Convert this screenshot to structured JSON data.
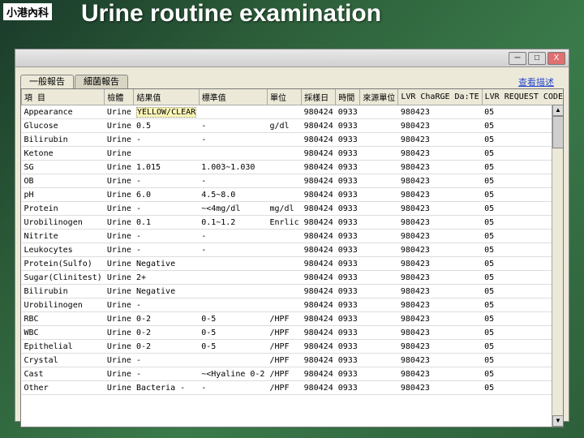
{
  "header_label": "小港內科",
  "title": "Urine routine examination",
  "window": {
    "minimize": "─",
    "maximize": "□",
    "close": "X"
  },
  "tabs": [
    {
      "label": "一般報告",
      "active": true
    },
    {
      "label": "細菌報告",
      "active": false
    }
  ],
  "link_label": "查看描述",
  "columns": [
    "項 目",
    "檢體",
    "結果值",
    "標準值",
    "單位",
    "採樣日",
    "時間",
    "來源單位",
    "LVR ChaRGE Da:TE",
    "LVR REQUEST CODE1",
    "-"
  ],
  "col_widths": [
    "90px",
    "38px",
    "68px",
    "68px",
    "34px",
    "46px",
    "32px",
    "52px",
    "82px",
    "104px",
    "14px"
  ],
  "rows": [
    {
      "item": "Appearance",
      "spec": "Urine",
      "result": "YELLOW/CLEAR",
      "std": "",
      "unit": "",
      "date": "980424",
      "time": "0933",
      "src": "",
      "chg": "980423",
      "req": "05",
      "x": "9",
      "hl": true
    },
    {
      "item": "Glucose",
      "spec": "Urine",
      "result": "0.5",
      "std": "-",
      "unit": "g/dl",
      "date": "980424",
      "time": "0933",
      "src": "",
      "chg": "980423",
      "req": "05",
      "x": "9"
    },
    {
      "item": "Bilirubin",
      "spec": "Urine",
      "result": "-",
      "std": "-",
      "unit": "",
      "date": "980424",
      "time": "0933",
      "src": "",
      "chg": "980423",
      "req": "05",
      "x": "9"
    },
    {
      "item": "Ketone",
      "spec": "Urine",
      "result": "",
      "std": "",
      "unit": "",
      "date": "980424",
      "time": "0933",
      "src": "",
      "chg": "980423",
      "req": "05",
      "x": "9"
    },
    {
      "item": "SG",
      "spec": "Urine",
      "result": "1.015",
      "std": "1.003~1.030",
      "unit": "",
      "date": "980424",
      "time": "0933",
      "src": "",
      "chg": "980423",
      "req": "05",
      "x": "9"
    },
    {
      "item": "OB",
      "spec": "Urine",
      "result": "-",
      "std": "-",
      "unit": "",
      "date": "980424",
      "time": "0933",
      "src": "",
      "chg": "980423",
      "req": "05",
      "x": "9"
    },
    {
      "item": "pH",
      "spec": "Urine",
      "result": "6.0",
      "std": "4.5~8.0",
      "unit": "",
      "date": "980424",
      "time": "0933",
      "src": "",
      "chg": "980423",
      "req": "05",
      "x": "9"
    },
    {
      "item": "Protein",
      "spec": "Urine",
      "result": "-",
      "std": "~<4mg/dl",
      "unit": "mg/dl",
      "date": "980424",
      "time": "0933",
      "src": "",
      "chg": "980423",
      "req": "05",
      "x": "9"
    },
    {
      "item": "Urobilinogen",
      "spec": "Urine",
      "result": "0.1",
      "std": "0.1~1.2",
      "unit": "Enrlic",
      "date": "980424",
      "time": "0933",
      "src": "",
      "chg": "980423",
      "req": "05",
      "x": "9"
    },
    {
      "item": "Nitrite",
      "spec": "Urine",
      "result": "-",
      "std": "-",
      "unit": "",
      "date": "980424",
      "time": "0933",
      "src": "",
      "chg": "980423",
      "req": "05",
      "x": "9"
    },
    {
      "item": "Leukocytes",
      "spec": "Urine",
      "result": "-",
      "std": "-",
      "unit": "",
      "date": "980424",
      "time": "0933",
      "src": "",
      "chg": "980423",
      "req": "05",
      "x": "9"
    },
    {
      "item": "Protein(Sulfo)",
      "spec": "Urine",
      "result": "Negative",
      "std": "",
      "unit": "",
      "date": "980424",
      "time": "0933",
      "src": "",
      "chg": "980423",
      "req": "05",
      "x": "9"
    },
    {
      "item": "Sugar(Clinitest)",
      "spec": "Urine",
      "result": "2+",
      "std": "",
      "unit": "",
      "date": "980424",
      "time": "0933",
      "src": "",
      "chg": "980423",
      "req": "05",
      "x": "9"
    },
    {
      "item": "Bilirubin",
      "spec": "Urine",
      "result": "Negative",
      "std": "",
      "unit": "",
      "date": "980424",
      "time": "0933",
      "src": "",
      "chg": "980423",
      "req": "05",
      "x": "9"
    },
    {
      "item": "Urobilinogen",
      "spec": "Urine",
      "result": "-",
      "std": "",
      "unit": "",
      "date": "980424",
      "time": "0933",
      "src": "",
      "chg": "980423",
      "req": "05",
      "x": "9"
    },
    {
      "item": "RBC",
      "spec": "Urine",
      "result": "0-2",
      "std": "0-5",
      "unit": "/HPF",
      "date": "980424",
      "time": "0933",
      "src": "",
      "chg": "980423",
      "req": "05",
      "x": "9"
    },
    {
      "item": "WBC",
      "spec": "Urine",
      "result": "0-2",
      "std": "0-5",
      "unit": "/HPF",
      "date": "980424",
      "time": "0933",
      "src": "",
      "chg": "980423",
      "req": "05",
      "x": "9"
    },
    {
      "item": "Epithelial",
      "spec": "Urine",
      "result": "0-2",
      "std": "0-5",
      "unit": "/HPF",
      "date": "980424",
      "time": "0933",
      "src": "",
      "chg": "980423",
      "req": "05",
      "x": "9"
    },
    {
      "item": "Crystal",
      "spec": "Urine",
      "result": "-",
      "std": "",
      "unit": "/HPF",
      "date": "980424",
      "time": "0933",
      "src": "",
      "chg": "980423",
      "req": "05",
      "x": "9"
    },
    {
      "item": "Cast",
      "spec": "Urine",
      "result": "-",
      "std": "~<Hyaline 0-2",
      "unit": "/HPF",
      "date": "980424",
      "time": "0933",
      "src": "",
      "chg": "980423",
      "req": "05",
      "x": "9"
    },
    {
      "item": "Other",
      "spec": "Urine",
      "result": "Bacteria -",
      "std": "-",
      "unit": "/HPF",
      "date": "980424",
      "time": "0933",
      "src": "",
      "chg": "980423",
      "req": "05",
      "x": "9"
    }
  ]
}
